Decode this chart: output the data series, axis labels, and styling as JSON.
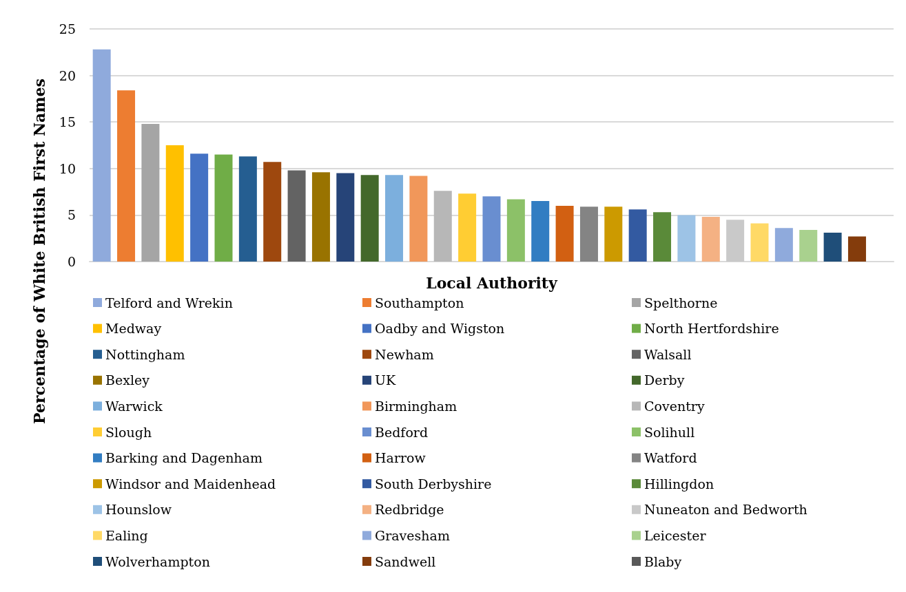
{
  "chart_data": {
    "type": "bar",
    "xlabel": "Local Authority",
    "ylabel": "Percentage of White British First Names",
    "categories": [
      null,
      null,
      null,
      null,
      null,
      null,
      null,
      null,
      null,
      null,
      null,
      null,
      null,
      null,
      null,
      null,
      null,
      null,
      null,
      null,
      null,
      null,
      null,
      null,
      null,
      null,
      null,
      null,
      null,
      null,
      null,
      null,
      null
    ],
    "ylim": [
      0,
      25
    ],
    "yticks": [
      0,
      5,
      10,
      15,
      20,
      25
    ],
    "grid": "y",
    "legend": "bottom",
    "series": [
      {
        "name": "Telford and Wrekin",
        "color": "#8faadc",
        "values": [
          22.8,
          null,
          null,
          null,
          null,
          null,
          null,
          null,
          null,
          null,
          null,
          null,
          null,
          null,
          null,
          null,
          null,
          null,
          null,
          null,
          null,
          null,
          null,
          null,
          null,
          null,
          null,
          null,
          null,
          null,
          null,
          null,
          null
        ]
      },
      {
        "name": "Southampton",
        "color": "#ed7d31",
        "values": [
          null,
          18.4,
          null,
          null,
          null,
          null,
          null,
          null,
          null,
          null,
          null,
          null,
          null,
          null,
          null,
          null,
          null,
          null,
          null,
          null,
          null,
          null,
          null,
          null,
          null,
          null,
          null,
          null,
          null,
          null,
          null,
          null,
          null
        ]
      },
      {
        "name": "Spelthorne",
        "color": "#a5a5a5",
        "values": [
          null,
          null,
          14.8,
          null,
          null,
          null,
          null,
          null,
          null,
          null,
          null,
          null,
          null,
          null,
          null,
          null,
          null,
          null,
          null,
          null,
          null,
          null,
          null,
          null,
          null,
          null,
          null,
          null,
          null,
          null,
          null,
          null,
          null
        ]
      },
      {
        "name": "Medway",
        "color": "#ffc000",
        "values": [
          null,
          null,
          null,
          12.5,
          null,
          null,
          null,
          null,
          null,
          null,
          null,
          null,
          null,
          null,
          null,
          null,
          null,
          null,
          null,
          null,
          null,
          null,
          null,
          null,
          null,
          null,
          null,
          null,
          null,
          null,
          null,
          null,
          null
        ]
      },
      {
        "name": "Oadby and Wigston",
        "color": "#4472c4",
        "values": [
          null,
          null,
          null,
          null,
          11.6,
          null,
          null,
          null,
          null,
          null,
          null,
          null,
          null,
          null,
          null,
          null,
          null,
          null,
          null,
          null,
          null,
          null,
          null,
          null,
          null,
          null,
          null,
          null,
          null,
          null,
          null,
          null,
          null
        ]
      },
      {
        "name": "North Hertfordshire",
        "color": "#70ad47",
        "values": [
          null,
          null,
          null,
          null,
          null,
          11.5,
          null,
          null,
          null,
          null,
          null,
          null,
          null,
          null,
          null,
          null,
          null,
          null,
          null,
          null,
          null,
          null,
          null,
          null,
          null,
          null,
          null,
          null,
          null,
          null,
          null,
          null,
          null
        ]
      },
      {
        "name": "Nottingham",
        "color": "#255e91",
        "values": [
          null,
          null,
          null,
          null,
          null,
          null,
          11.3,
          null,
          null,
          null,
          null,
          null,
          null,
          null,
          null,
          null,
          null,
          null,
          null,
          null,
          null,
          null,
          null,
          null,
          null,
          null,
          null,
          null,
          null,
          null,
          null,
          null,
          null
        ]
      },
      {
        "name": "Newham",
        "color": "#9e480e",
        "values": [
          null,
          null,
          null,
          null,
          null,
          null,
          null,
          10.7,
          null,
          null,
          null,
          null,
          null,
          null,
          null,
          null,
          null,
          null,
          null,
          null,
          null,
          null,
          null,
          null,
          null,
          null,
          null,
          null,
          null,
          null,
          null,
          null,
          null
        ]
      },
      {
        "name": "Walsall",
        "color": "#636363",
        "values": [
          null,
          null,
          null,
          null,
          null,
          null,
          null,
          null,
          9.8,
          null,
          null,
          null,
          null,
          null,
          null,
          null,
          null,
          null,
          null,
          null,
          null,
          null,
          null,
          null,
          null,
          null,
          null,
          null,
          null,
          null,
          null,
          null,
          null
        ]
      },
      {
        "name": "Bexley",
        "color": "#997300",
        "values": [
          null,
          null,
          null,
          null,
          null,
          null,
          null,
          null,
          null,
          9.6,
          null,
          null,
          null,
          null,
          null,
          null,
          null,
          null,
          null,
          null,
          null,
          null,
          null,
          null,
          null,
          null,
          null,
          null,
          null,
          null,
          null,
          null,
          null
        ]
      },
      {
        "name": "UK",
        "color": "#264478",
        "values": [
          null,
          null,
          null,
          null,
          null,
          null,
          null,
          null,
          null,
          null,
          9.5,
          null,
          null,
          null,
          null,
          null,
          null,
          null,
          null,
          null,
          null,
          null,
          null,
          null,
          null,
          null,
          null,
          null,
          null,
          null,
          null,
          null,
          null
        ]
      },
      {
        "name": "Derby",
        "color": "#43682b",
        "values": [
          null,
          null,
          null,
          null,
          null,
          null,
          null,
          null,
          null,
          null,
          null,
          9.3,
          null,
          null,
          null,
          null,
          null,
          null,
          null,
          null,
          null,
          null,
          null,
          null,
          null,
          null,
          null,
          null,
          null,
          null,
          null,
          null,
          null
        ]
      },
      {
        "name": "Warwick",
        "color": "#7cafdd",
        "values": [
          null,
          null,
          null,
          null,
          null,
          null,
          null,
          null,
          null,
          null,
          null,
          null,
          9.3,
          null,
          null,
          null,
          null,
          null,
          null,
          null,
          null,
          null,
          null,
          null,
          null,
          null,
          null,
          null,
          null,
          null,
          null,
          null,
          null
        ]
      },
      {
        "name": "Birmingham",
        "color": "#f1975a",
        "values": [
          null,
          null,
          null,
          null,
          null,
          null,
          null,
          null,
          null,
          null,
          null,
          null,
          null,
          9.2,
          null,
          null,
          null,
          null,
          null,
          null,
          null,
          null,
          null,
          null,
          null,
          null,
          null,
          null,
          null,
          null,
          null,
          null,
          null
        ]
      },
      {
        "name": "Coventry",
        "color": "#b7b7b7",
        "values": [
          null,
          null,
          null,
          null,
          null,
          null,
          null,
          null,
          null,
          null,
          null,
          null,
          null,
          null,
          7.6,
          null,
          null,
          null,
          null,
          null,
          null,
          null,
          null,
          null,
          null,
          null,
          null,
          null,
          null,
          null,
          null,
          null,
          null
        ]
      },
      {
        "name": "Slough",
        "color": "#ffcd33",
        "values": [
          null,
          null,
          null,
          null,
          null,
          null,
          null,
          null,
          null,
          null,
          null,
          null,
          null,
          null,
          null,
          7.3,
          null,
          null,
          null,
          null,
          null,
          null,
          null,
          null,
          null,
          null,
          null,
          null,
          null,
          null,
          null,
          null,
          null
        ]
      },
      {
        "name": "Bedford",
        "color": "#698ed0",
        "values": [
          null,
          null,
          null,
          null,
          null,
          null,
          null,
          null,
          null,
          null,
          null,
          null,
          null,
          null,
          null,
          null,
          7.0,
          null,
          null,
          null,
          null,
          null,
          null,
          null,
          null,
          null,
          null,
          null,
          null,
          null,
          null,
          null,
          null
        ]
      },
      {
        "name": "Solihull",
        "color": "#8cc168",
        "values": [
          null,
          null,
          null,
          null,
          null,
          null,
          null,
          null,
          null,
          null,
          null,
          null,
          null,
          null,
          null,
          null,
          null,
          6.7,
          null,
          null,
          null,
          null,
          null,
          null,
          null,
          null,
          null,
          null,
          null,
          null,
          null,
          null,
          null
        ]
      },
      {
        "name": "Barking and Dagenham",
        "color": "#327dc2",
        "values": [
          null,
          null,
          null,
          null,
          null,
          null,
          null,
          null,
          null,
          null,
          null,
          null,
          null,
          null,
          null,
          null,
          null,
          null,
          6.5,
          null,
          null,
          null,
          null,
          null,
          null,
          null,
          null,
          null,
          null,
          null,
          null,
          null,
          null
        ]
      },
      {
        "name": "Harrow",
        "color": "#d26012",
        "values": [
          null,
          null,
          null,
          null,
          null,
          null,
          null,
          null,
          null,
          null,
          null,
          null,
          null,
          null,
          null,
          null,
          null,
          null,
          null,
          6.0,
          null,
          null,
          null,
          null,
          null,
          null,
          null,
          null,
          null,
          null,
          null,
          null,
          null
        ]
      },
      {
        "name": "Watford",
        "color": "#848484",
        "values": [
          null,
          null,
          null,
          null,
          null,
          null,
          null,
          null,
          null,
          null,
          null,
          null,
          null,
          null,
          null,
          null,
          null,
          null,
          null,
          null,
          5.9,
          null,
          null,
          null,
          null,
          null,
          null,
          null,
          null,
          null,
          null,
          null,
          null
        ]
      },
      {
        "name": "Windsor and Maidenhead",
        "color": "#cc9a00",
        "values": [
          null,
          null,
          null,
          null,
          null,
          null,
          null,
          null,
          null,
          null,
          null,
          null,
          null,
          null,
          null,
          null,
          null,
          null,
          null,
          null,
          null,
          5.9,
          null,
          null,
          null,
          null,
          null,
          null,
          null,
          null,
          null,
          null,
          null
        ]
      },
      {
        "name": "South Derbyshire",
        "color": "#335aa1",
        "values": [
          null,
          null,
          null,
          null,
          null,
          null,
          null,
          null,
          null,
          null,
          null,
          null,
          null,
          null,
          null,
          null,
          null,
          null,
          null,
          null,
          null,
          null,
          5.6,
          null,
          null,
          null,
          null,
          null,
          null,
          null,
          null,
          null,
          null
        ]
      },
      {
        "name": "Hillingdon",
        "color": "#5a8a39",
        "values": [
          null,
          null,
          null,
          null,
          null,
          null,
          null,
          null,
          null,
          null,
          null,
          null,
          null,
          null,
          null,
          null,
          null,
          null,
          null,
          null,
          null,
          null,
          null,
          5.3,
          null,
          null,
          null,
          null,
          null,
          null,
          null,
          null,
          null
        ]
      },
      {
        "name": "Hounslow",
        "color": "#9dc3e6",
        "values": [
          null,
          null,
          null,
          null,
          null,
          null,
          null,
          null,
          null,
          null,
          null,
          null,
          null,
          null,
          null,
          null,
          null,
          null,
          null,
          null,
          null,
          null,
          null,
          null,
          5.0,
          null,
          null,
          null,
          null,
          null,
          null,
          null,
          null
        ]
      },
      {
        "name": "Redbridge",
        "color": "#f4b183",
        "values": [
          null,
          null,
          null,
          null,
          null,
          null,
          null,
          null,
          null,
          null,
          null,
          null,
          null,
          null,
          null,
          null,
          null,
          null,
          null,
          null,
          null,
          null,
          null,
          null,
          null,
          4.8,
          null,
          null,
          null,
          null,
          null,
          null,
          null
        ]
      },
      {
        "name": "Nuneaton and Bedworth",
        "color": "#c9c9c9",
        "values": [
          null,
          null,
          null,
          null,
          null,
          null,
          null,
          null,
          null,
          null,
          null,
          null,
          null,
          null,
          null,
          null,
          null,
          null,
          null,
          null,
          null,
          null,
          null,
          null,
          null,
          null,
          4.5,
          null,
          null,
          null,
          null,
          null,
          null
        ]
      },
      {
        "name": "Ealing",
        "color": "#ffd966",
        "values": [
          null,
          null,
          null,
          null,
          null,
          null,
          null,
          null,
          null,
          null,
          null,
          null,
          null,
          null,
          null,
          null,
          null,
          null,
          null,
          null,
          null,
          null,
          null,
          null,
          null,
          null,
          null,
          4.1,
          null,
          null,
          null,
          null,
          null
        ]
      },
      {
        "name": "Gravesham",
        "color": "#8faadc",
        "values": [
          null,
          null,
          null,
          null,
          null,
          null,
          null,
          null,
          null,
          null,
          null,
          null,
          null,
          null,
          null,
          null,
          null,
          null,
          null,
          null,
          null,
          null,
          null,
          null,
          null,
          null,
          null,
          null,
          3.6,
          null,
          null,
          null,
          null
        ]
      },
      {
        "name": "Leicester",
        "color": "#a9d18e",
        "values": [
          null,
          null,
          null,
          null,
          null,
          null,
          null,
          null,
          null,
          null,
          null,
          null,
          null,
          null,
          null,
          null,
          null,
          null,
          null,
          null,
          null,
          null,
          null,
          null,
          null,
          null,
          null,
          null,
          null,
          3.4,
          null,
          null,
          null
        ]
      },
      {
        "name": "Wolverhampton",
        "color": "#1f4e79",
        "values": [
          null,
          null,
          null,
          null,
          null,
          null,
          null,
          null,
          null,
          null,
          null,
          null,
          null,
          null,
          null,
          null,
          null,
          null,
          null,
          null,
          null,
          null,
          null,
          null,
          null,
          null,
          null,
          null,
          null,
          null,
          3.1,
          null,
          null
        ]
      },
      {
        "name": "Sandwell",
        "color": "#843c0c",
        "values": [
          null,
          null,
          null,
          null,
          null,
          null,
          null,
          null,
          null,
          null,
          null,
          null,
          null,
          null,
          null,
          null,
          null,
          null,
          null,
          null,
          null,
          null,
          null,
          null,
          null,
          null,
          null,
          null,
          null,
          null,
          null,
          2.7,
          null
        ]
      },
      {
        "name": "Blaby",
        "color": "#595959",
        "values": [
          null,
          null,
          null,
          null,
          null,
          null,
          null,
          null,
          null,
          null,
          null,
          null,
          null,
          null,
          null,
          null,
          null,
          null,
          null,
          null,
          null,
          null,
          null,
          null,
          null,
          null,
          null,
          null,
          null,
          null,
          null,
          null,
          null
        ]
      }
    ]
  }
}
